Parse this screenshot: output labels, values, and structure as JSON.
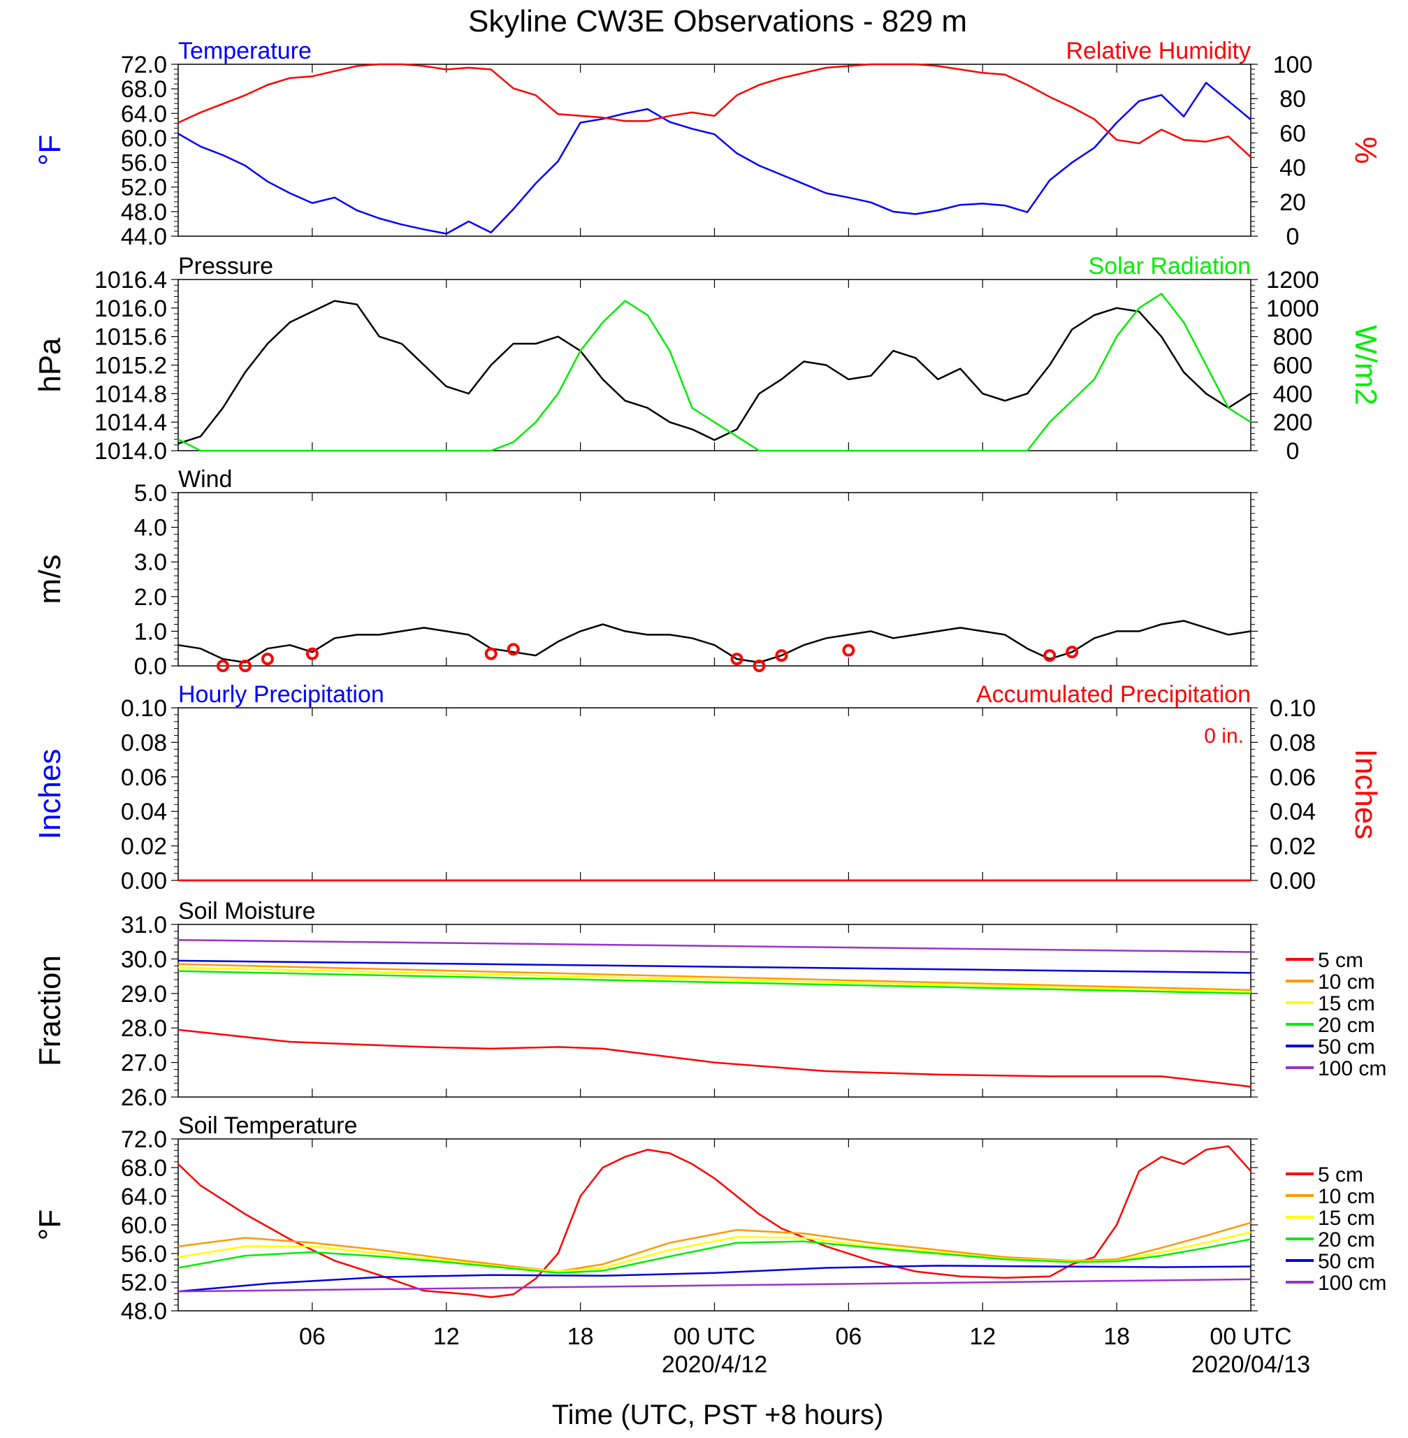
{
  "title": "Skyline CW3E Observations - 829 m",
  "x_axis": {
    "label": "Time (UTC, PST +8 hours)",
    "ticks": [
      "06",
      "12",
      "18",
      "00 UTC",
      "06",
      "12",
      "18",
      "00 UTC"
    ],
    "dates": [
      "2020/4/12",
      "2020/04/13"
    ]
  },
  "chart_data": [
    {
      "id": "temp-rh",
      "type": "line",
      "title_left": "Temperature",
      "title_right": "Relative Humidity",
      "ylabel_left": "°F",
      "ylabel_right": "%",
      "ylim_left": [
        44,
        72
      ],
      "ylim_right": [
        0,
        100
      ],
      "yticks_left": [
        "72.0",
        "68.0",
        "64.0",
        "60.0",
        "56.0",
        "52.0",
        "48.0",
        "44.0"
      ],
      "yticks_right": [
        "100",
        "80",
        "60",
        "40",
        "20",
        "0"
      ],
      "series": [
        {
          "name": "Temperature",
          "axis": "left",
          "color": "#0000ff",
          "x": [
            1,
            2,
            3,
            4,
            5,
            6,
            7,
            8,
            9,
            10,
            11,
            12,
            13,
            14,
            15,
            16,
            17,
            18,
            19,
            20,
            21,
            22,
            23,
            24,
            25,
            26,
            27,
            28,
            29,
            30,
            31,
            32,
            33,
            34,
            35,
            36,
            37,
            38,
            39,
            40,
            41,
            42,
            43,
            44,
            45,
            46,
            47,
            48,
            49
          ],
          "y": [
            60.7,
            58.6,
            57.2,
            55.5,
            52.9,
            51.0,
            49.4,
            50.3,
            48.2,
            46.9,
            45.9,
            45.1,
            44.4,
            46.4,
            44.6,
            48.4,
            52.6,
            56.2,
            62.5,
            63.1,
            64.0,
            64.7,
            62.6,
            61.5,
            60.6,
            57.5,
            55.5,
            54.0,
            52.5,
            51.0,
            50.3,
            49.5,
            48.0,
            47.6,
            48.2,
            49.1,
            49.3,
            49.0,
            47.9,
            53.1,
            56.0,
            58.4,
            62.5,
            66.0,
            67.0,
            63.5,
            69.0,
            66.0,
            63.0
          ]
        },
        {
          "name": "Relative Humidity",
          "axis": "right",
          "color": "#ff0000",
          "x": [
            1,
            2,
            3,
            4,
            5,
            6,
            7,
            8,
            9,
            10,
            11,
            12,
            13,
            14,
            15,
            16,
            17,
            18,
            19,
            20,
            21,
            22,
            23,
            24,
            25,
            26,
            27,
            28,
            29,
            30,
            31,
            32,
            33,
            34,
            35,
            36,
            37,
            38,
            39,
            40,
            41,
            42,
            43,
            44,
            45,
            46,
            47,
            48,
            49
          ],
          "y": [
            66,
            72,
            77,
            82,
            88,
            92,
            93,
            96,
            99,
            100,
            100,
            99,
            97,
            98,
            97,
            86,
            82,
            71,
            70,
            69,
            67,
            67,
            70,
            72,
            70,
            82,
            88,
            92,
            95,
            98,
            99,
            100,
            100,
            100,
            99,
            97,
            95,
            94,
            88,
            81,
            75,
            68,
            56,
            54,
            62,
            56,
            55,
            58,
            46
          ]
        }
      ]
    },
    {
      "id": "pressure-solar",
      "type": "line",
      "title_left": "Pressure",
      "title_right": "Solar Radiation",
      "ylabel_left": "hPa",
      "ylabel_right": "W/m2",
      "ylim_left": [
        1014.0,
        1016.4
      ],
      "ylim_right": [
        0,
        1200
      ],
      "yticks_left": [
        "1016.4",
        "1016.0",
        "1015.6",
        "1015.2",
        "1014.8",
        "1014.4",
        "1014.0"
      ],
      "yticks_right": [
        "1200",
        "1000",
        "800",
        "600",
        "400",
        "200",
        "0"
      ],
      "series": [
        {
          "name": "Pressure",
          "axis": "left",
          "color": "#000000",
          "x": [
            1,
            2,
            3,
            4,
            5,
            6,
            7,
            8,
            9,
            10,
            11,
            12,
            13,
            14,
            15,
            16,
            17,
            18,
            19,
            20,
            21,
            22,
            23,
            24,
            25,
            26,
            27,
            28,
            29,
            30,
            31,
            32,
            33,
            34,
            35,
            36,
            37,
            38,
            39,
            40,
            41,
            42,
            43,
            44,
            45,
            46,
            47,
            48,
            49
          ],
          "y": [
            1014.1,
            1014.2,
            1014.6,
            1015.1,
            1015.5,
            1015.8,
            1015.95,
            1016.1,
            1016.05,
            1015.6,
            1015.5,
            1015.2,
            1014.9,
            1014.8,
            1015.2,
            1015.5,
            1015.5,
            1015.6,
            1015.4,
            1015.0,
            1014.7,
            1014.6,
            1014.4,
            1014.3,
            1014.15,
            1014.3,
            1014.8,
            1015.0,
            1015.25,
            1015.2,
            1015.0,
            1015.05,
            1015.4,
            1015.3,
            1015.0,
            1015.15,
            1014.8,
            1014.7,
            1014.8,
            1015.2,
            1015.7,
            1015.9,
            1016.0,
            1015.95,
            1015.6,
            1015.1,
            1014.8,
            1014.6,
            1014.8
          ]
        },
        {
          "name": "Solar Radiation",
          "axis": "right",
          "color": "#00ee00",
          "x": [
            1,
            2,
            3,
            4,
            5,
            6,
            7,
            8,
            9,
            10,
            11,
            12,
            13,
            14,
            15,
            16,
            17,
            18,
            19,
            20,
            21,
            22,
            23,
            24,
            25,
            26,
            27,
            28,
            29,
            30,
            31,
            32,
            33,
            34,
            35,
            36,
            37,
            38,
            39,
            40,
            41,
            42,
            43,
            44,
            45,
            46,
            47,
            48,
            49
          ],
          "y": [
            80,
            0,
            0,
            0,
            0,
            0,
            0,
            0,
            0,
            0,
            0,
            0,
            0,
            0,
            0,
            60,
            200,
            400,
            700,
            900,
            1050,
            950,
            700,
            300,
            200,
            100,
            0,
            0,
            0,
            0,
            0,
            0,
            0,
            0,
            0,
            0,
            0,
            0,
            0,
            200,
            350,
            500,
            800,
            1000,
            1100,
            900,
            600,
            300,
            200
          ]
        }
      ]
    },
    {
      "id": "wind",
      "type": "line",
      "title_left": "Wind",
      "ylabel_left": "m/s",
      "ylim_left": [
        0,
        5
      ],
      "yticks_left": [
        "5.0",
        "4.0",
        "3.0",
        "2.0",
        "1.0",
        "0.0"
      ],
      "series": [
        {
          "name": "Wind speed",
          "axis": "left",
          "color": "#000000",
          "x": [
            1,
            2,
            3,
            4,
            5,
            6,
            7,
            8,
            9,
            10,
            11,
            12,
            13,
            14,
            15,
            16,
            17,
            18,
            19,
            20,
            21,
            22,
            23,
            24,
            25,
            26,
            27,
            28,
            29,
            30,
            31,
            32,
            33,
            34,
            35,
            36,
            37,
            38,
            39,
            40,
            41,
            42,
            43,
            44,
            45,
            46,
            47,
            48,
            49
          ],
          "y": [
            0.6,
            0.5,
            0.2,
            0.1,
            0.5,
            0.6,
            0.4,
            0.8,
            0.9,
            0.9,
            1.0,
            1.1,
            1.0,
            0.9,
            0.5,
            0.4,
            0.3,
            0.7,
            1.0,
            1.2,
            1.0,
            0.9,
            0.9,
            0.8,
            0.6,
            0.2,
            0.1,
            0.3,
            0.6,
            0.8,
            0.9,
            1.0,
            0.8,
            0.9,
            1.0,
            1.1,
            1.0,
            0.9,
            0.5,
            0.2,
            0.4,
            0.8,
            1.0,
            1.0,
            1.2,
            1.3,
            1.1,
            0.9,
            1.0
          ]
        },
        {
          "name": "Calm circles",
          "axis": "left",
          "color": "#ff0000",
          "x": [
            3,
            4,
            5,
            7,
            15,
            16,
            26,
            27,
            28,
            31,
            40,
            41
          ],
          "y": [
            0.0,
            0.0,
            0.2,
            0.35,
            0.35,
            0.48,
            0.2,
            0.0,
            0.3,
            0.45,
            0.3,
            0.4
          ]
        }
      ]
    },
    {
      "id": "precip",
      "type": "line",
      "title_left": "Hourly Precipitation",
      "title_right": "Accumulated Precipitation",
      "annotation": "0 in.",
      "ylabel_left": "Inches",
      "ylabel_right": "Inches",
      "ylim_left": [
        0,
        0.1
      ],
      "ylim_right": [
        0,
        0.1
      ],
      "yticks_left": [
        "0.10",
        "0.08",
        "0.06",
        "0.04",
        "0.02",
        "0.00"
      ],
      "yticks_right": [
        "0.10",
        "0.08",
        "0.06",
        "0.04",
        "0.02",
        "0.00"
      ],
      "series": [
        {
          "name": "Hourly Precipitation",
          "axis": "left",
          "color": "#0000ff",
          "x": [
            1,
            49
          ],
          "y": [
            0,
            0
          ]
        },
        {
          "name": "Accumulated Precipitation",
          "axis": "right",
          "color": "#ff0000",
          "x": [
            1,
            49
          ],
          "y": [
            0,
            0
          ]
        }
      ]
    },
    {
      "id": "soil-moisture",
      "type": "line",
      "title_left": "Soil Moisture",
      "ylabel_left": "Fraction",
      "ylim_left": [
        26,
        31
      ],
      "yticks_left": [
        "31.0",
        "30.0",
        "29.0",
        "28.0",
        "27.0",
        "26.0"
      ],
      "legend": [
        "5 cm",
        "10 cm",
        "15 cm",
        "20 cm",
        "50 cm",
        "100 cm"
      ],
      "series": [
        {
          "name": "5 cm",
          "color": "#ff0000",
          "x": [
            1,
            6,
            12,
            15,
            18,
            20,
            25,
            30,
            35,
            40,
            45,
            49
          ],
          "y": [
            27.95,
            27.6,
            27.45,
            27.4,
            27.45,
            27.4,
            27.0,
            26.75,
            26.65,
            26.6,
            26.6,
            26.3
          ]
        },
        {
          "name": "10 cm",
          "color": "#ff9900",
          "x": [
            1,
            49
          ],
          "y": [
            29.85,
            29.1
          ]
        },
        {
          "name": "15 cm",
          "color": "#ffff00",
          "x": [
            1,
            49
          ],
          "y": [
            29.75,
            29.05
          ]
        },
        {
          "name": "20 cm",
          "color": "#00ee00",
          "x": [
            1,
            49
          ],
          "y": [
            29.65,
            29.0
          ]
        },
        {
          "name": "50 cm",
          "color": "#0000dd",
          "x": [
            1,
            49
          ],
          "y": [
            29.95,
            29.6
          ]
        },
        {
          "name": "100 cm",
          "color": "#9933cc",
          "x": [
            1,
            49
          ],
          "y": [
            30.55,
            30.2
          ]
        }
      ]
    },
    {
      "id": "soil-temperature",
      "type": "line",
      "title_left": "Soil Temperature",
      "ylabel_left": "°F",
      "ylim_left": [
        48,
        72
      ],
      "yticks_left": [
        "72.0",
        "68.0",
        "64.0",
        "60.0",
        "56.0",
        "52.0",
        "48.0"
      ],
      "legend": [
        "5 cm",
        "10 cm",
        "15 cm",
        "20 cm",
        "50 cm",
        "100 cm"
      ],
      "series": [
        {
          "name": "5 cm",
          "color": "#ff0000",
          "x": [
            1,
            2,
            4,
            6,
            8,
            10,
            12,
            14,
            15,
            16,
            17,
            18,
            19,
            20,
            21,
            22,
            23,
            24,
            25,
            26,
            27,
            28,
            30,
            32,
            34,
            36,
            38,
            40,
            41,
            42,
            43,
            44,
            45,
            46,
            47,
            48,
            49
          ],
          "y": [
            68.5,
            65.5,
            61.5,
            58.0,
            55.0,
            53.0,
            50.8,
            50.3,
            49.9,
            50.3,
            52.5,
            56.0,
            64.0,
            68.0,
            69.5,
            70.5,
            70.0,
            68.5,
            66.5,
            64.0,
            61.5,
            59.5,
            57.0,
            55.0,
            53.5,
            52.8,
            52.6,
            52.8,
            54.5,
            55.5,
            60.0,
            67.5,
            69.5,
            68.5,
            70.5,
            71.0,
            67.5
          ]
        },
        {
          "name": "10 cm",
          "color": "#ff9900",
          "x": [
            1,
            4,
            7,
            10,
            13,
            16,
            18,
            20,
            23,
            26,
            29,
            32,
            35,
            38,
            41,
            43,
            45,
            47,
            49
          ],
          "y": [
            57.0,
            58.2,
            57.5,
            56.5,
            55.3,
            54.2,
            53.5,
            54.5,
            57.5,
            59.3,
            58.8,
            57.5,
            56.5,
            55.5,
            55.0,
            55.2,
            56.8,
            58.5,
            60.3
          ]
        },
        {
          "name": "15 cm",
          "color": "#ffff00",
          "x": [
            1,
            4,
            7,
            10,
            13,
            16,
            18,
            20,
            23,
            26,
            29,
            32,
            35,
            38,
            41,
            43,
            45,
            47,
            49
          ],
          "y": [
            55.5,
            57.0,
            57.0,
            56.0,
            55.0,
            54.0,
            53.5,
            54.0,
            56.5,
            58.3,
            58.2,
            57.0,
            56.2,
            55.3,
            54.9,
            55.0,
            56.2,
            57.5,
            59.0
          ]
        },
        {
          "name": "20 cm",
          "color": "#00ee00",
          "x": [
            1,
            4,
            7,
            10,
            13,
            16,
            18,
            20,
            23,
            26,
            29,
            32,
            35,
            38,
            41,
            43,
            45,
            47,
            49
          ],
          "y": [
            54.0,
            55.7,
            56.2,
            55.6,
            54.8,
            53.9,
            53.3,
            53.6,
            55.6,
            57.5,
            57.7,
            56.8,
            56.0,
            55.2,
            54.8,
            54.9,
            55.7,
            56.8,
            58.0
          ]
        },
        {
          "name": "50 cm",
          "color": "#0000dd",
          "x": [
            1,
            5,
            10,
            15,
            20,
            25,
            30,
            35,
            40,
            45,
            49
          ],
          "y": [
            50.7,
            51.8,
            52.7,
            53.0,
            52.9,
            53.3,
            54.0,
            54.3,
            54.2,
            54.1,
            54.2
          ]
        },
        {
          "name": "100 cm",
          "color": "#9933cc",
          "x": [
            1,
            49
          ],
          "y": [
            50.7,
            52.4
          ]
        }
      ]
    }
  ]
}
